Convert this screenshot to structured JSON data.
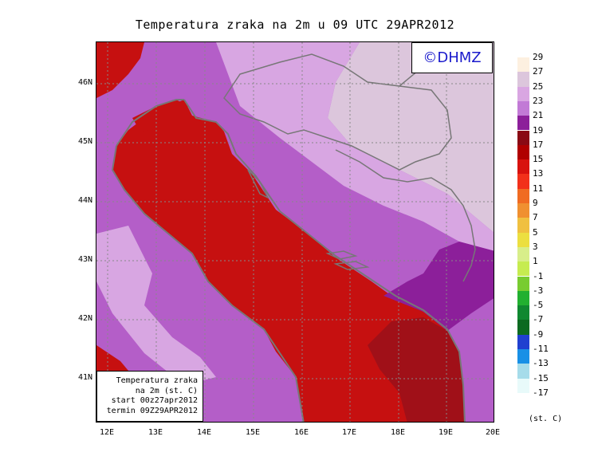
{
  "title": "Temperatura zraka na 2m u 09 UTC 29APR2012",
  "logo": "©DHMZ",
  "info_box": {
    "line1": "Temperatura zraka",
    "line2": "na 2m (st. C)",
    "line3": "start 00z27apr2012",
    "line4": "termin 09Z29APR2012"
  },
  "latitude_labels": [
    "46N",
    "45N",
    "44N",
    "43N",
    "42N",
    "41N"
  ],
  "longitude_labels": [
    "12E",
    "13E",
    "14E",
    "15E",
    "16E",
    "17E",
    "18E",
    "19E",
    "20E"
  ],
  "legend": {
    "units": "(st. C)",
    "labels": [
      "29",
      "27",
      "25",
      "23",
      "21",
      "19",
      "17",
      "15",
      "13",
      "11",
      "9",
      "7",
      "5",
      "3",
      "1",
      "-1",
      "-3",
      "-5",
      "-7",
      "-9",
      "-11",
      "-13",
      "-15",
      "-17"
    ],
    "colors": [
      "#fdf0e0",
      "#dcc6dc",
      "#d9a6e2",
      "#c27ad6",
      "#8c1f9a",
      "#8a0a14",
      "#b00000",
      "#d8120e",
      "#f2301a",
      "#f06b22",
      "#f09030",
      "#f0c040",
      "#ecdf40",
      "#d8ee8a",
      "#c6ec50",
      "#78cc30",
      "#22b030",
      "#108830",
      "#0c6a20",
      "#2040d0",
      "#1890e6",
      "#a6dcea",
      "#e8fafa"
    ]
  },
  "colors": {
    "sea_warm": "#c61010",
    "sea_dark": "#a01018",
    "land_purple": "#b45ec8",
    "land_light": "#d8a6e2",
    "land_pale": "#dcc6dc",
    "coast": "#777777",
    "grid": "#888888",
    "logo_text": "#1a1acc"
  }
}
